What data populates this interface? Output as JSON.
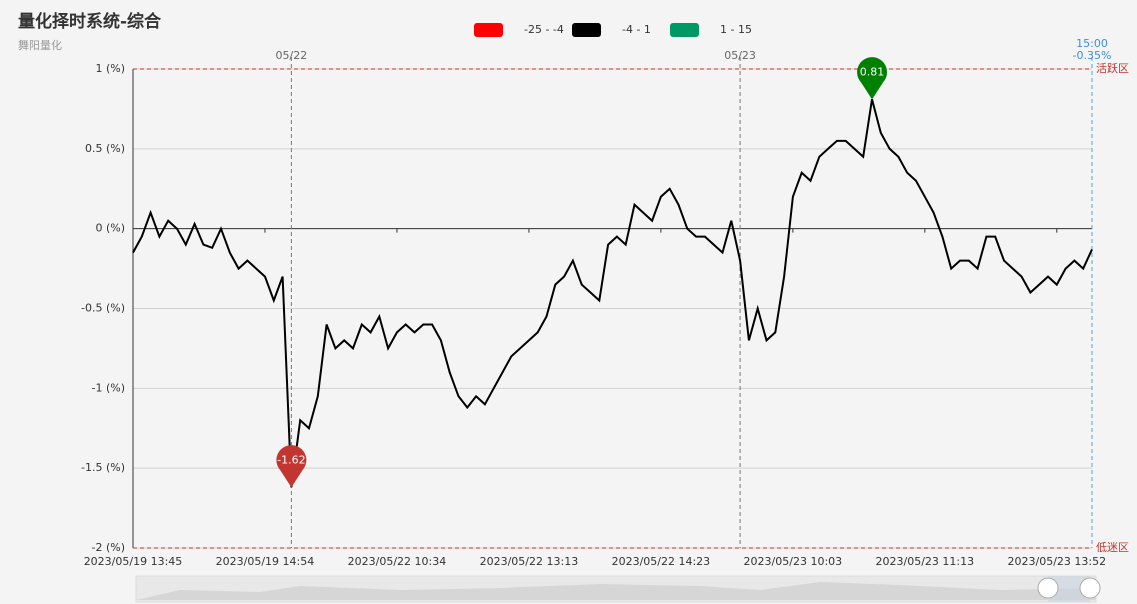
{
  "chart_data": {
    "type": "line",
    "title": "量化择时系统-综合",
    "subtitle": "舞阳量化",
    "categories": [
      "2023/05/19 13:45",
      null,
      null,
      null,
      null,
      null,
      null,
      null,
      null,
      null,
      null,
      null,
      null,
      null,
      null,
      "2023/05/19 14:54",
      null,
      null,
      null,
      null,
      null,
      null,
      null,
      null,
      null,
      null,
      null,
      null,
      null,
      null,
      "2023/05/22 10:34",
      null,
      null,
      null,
      null,
      null,
      null,
      null,
      null,
      null,
      null,
      null,
      null,
      null,
      null,
      "2023/05/22 13:13",
      null,
      null,
      null,
      null,
      null,
      null,
      null,
      null,
      null,
      null,
      null,
      null,
      null,
      null,
      "2023/05/22 14:23",
      null,
      null,
      null,
      null,
      null,
      null,
      null,
      null,
      null,
      null,
      null,
      null,
      null,
      null,
      "2023/05/23 10:03",
      null,
      null,
      null,
      null,
      null,
      null,
      null,
      null,
      null,
      null,
      null,
      null,
      null,
      null,
      "2023/05/23 11:13",
      null,
      null,
      null,
      null,
      null,
      null,
      null,
      null,
      null,
      null,
      null,
      null,
      null,
      null,
      "2023/05/23 13:52",
      null,
      null,
      null,
      null
    ],
    "series": [
      {
        "name": "综合",
        "color": "#000000",
        "values": [
          -0.15,
          -0.05,
          0.1,
          -0.05,
          0.05,
          0.0,
          -0.1,
          0.03,
          -0.1,
          -0.12,
          0.0,
          -0.15,
          -0.25,
          -0.2,
          -0.25,
          -0.3,
          -0.45,
          -0.3,
          -1.62,
          -1.2,
          -1.25,
          -1.05,
          -0.6,
          -0.75,
          -0.7,
          -0.75,
          -0.6,
          -0.65,
          -0.55,
          -0.75,
          -0.65,
          -0.6,
          -0.65,
          -0.6,
          -0.6,
          -0.7,
          -0.9,
          -1.05,
          -1.12,
          -1.05,
          -1.1,
          -1.0,
          -0.9,
          -0.8,
          -0.75,
          -0.7,
          -0.65,
          -0.55,
          -0.35,
          -0.3,
          -0.2,
          -0.35,
          -0.4,
          -0.45,
          -0.1,
          -0.05,
          -0.1,
          0.15,
          0.1,
          0.05,
          0.2,
          0.25,
          0.15,
          0.0,
          -0.05,
          -0.05,
          -0.1,
          -0.15,
          0.05,
          -0.2,
          -0.7,
          -0.5,
          -0.7,
          -0.65,
          -0.3,
          0.2,
          0.35,
          0.3,
          0.45,
          0.5,
          0.55,
          0.55,
          0.5,
          0.45,
          0.81,
          0.6,
          0.5,
          0.45,
          0.35,
          0.3,
          0.2,
          0.1,
          -0.05,
          -0.25,
          -0.2,
          -0.2,
          -0.25,
          -0.05,
          -0.05,
          -0.2,
          -0.25,
          -0.3,
          -0.4,
          -0.35,
          -0.3,
          -0.35,
          -0.25,
          -0.2,
          -0.25,
          -0.13
        ]
      }
    ],
    "ylim": [
      -2,
      1
    ],
    "yticks": [
      {
        "value": -2,
        "label": "-2 (%)"
      },
      {
        "value": -1.5,
        "label": "-1.5 (%)"
      },
      {
        "value": -1,
        "label": "-1 (%)"
      },
      {
        "value": -0.5,
        "label": "-0.5 (%)"
      },
      {
        "value": 0,
        "label": "0 (%)"
      },
      {
        "value": 0.5,
        "label": "0.5 (%)"
      },
      {
        "value": 1,
        "label": "1 (%)"
      }
    ],
    "grid": true,
    "visual_map": [
      {
        "label": "-25 - -4",
        "min": -25,
        "max": -4,
        "color": "#ff0000"
      },
      {
        "label": "-4 - 1",
        "min": -4,
        "max": 1,
        "color": "#000000"
      },
      {
        "label": "1 - 15",
        "min": 1,
        "max": 15,
        "color": "#009966"
      }
    ],
    "mark_lines": [
      {
        "value": 1,
        "label": "活跃区"
      },
      {
        "value": -2,
        "label": "低迷区"
      }
    ],
    "day_lines": [
      {
        "index": 18,
        "label": "05/22"
      },
      {
        "index": 69,
        "label": "05/23"
      }
    ],
    "end_annotations": [
      "15:00",
      "-0.35%"
    ]
  }
}
